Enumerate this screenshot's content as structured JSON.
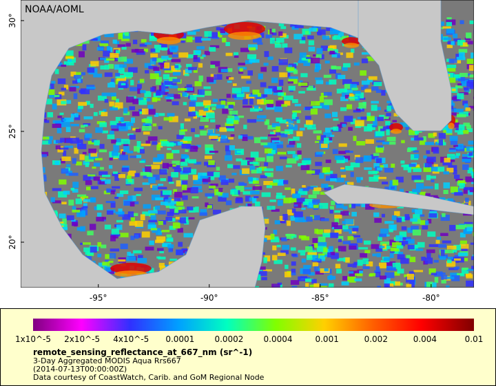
{
  "map": {
    "watermark": "NOAA/AOML",
    "lon_range": [
      -98.5,
      -78.07
    ],
    "lat_range": [
      17.95,
      30.93
    ],
    "lon_ticks": [
      {
        "value": -95,
        "label": "-95°"
      },
      {
        "value": -90,
        "label": "-90°"
      },
      {
        "value": -85,
        "label": "-85°"
      },
      {
        "value": -80,
        "label": "-80°"
      }
    ],
    "lat_ticks": [
      {
        "value": 30,
        "label": "30°"
      },
      {
        "value": 25,
        "label": "25°"
      },
      {
        "value": 20,
        "label": "20°"
      }
    ]
  },
  "colorbar": {
    "labels": [
      "1x10^-5",
      "2x10^-5",
      "4x10^-5",
      "0.0001",
      "0.0002",
      "0.0004",
      "0.001",
      "0.002",
      "0.004",
      "0.01"
    ]
  },
  "caption": {
    "variable": "remote_sensing_reflectance_at_667_nm (sr^-1)",
    "lines": [
      "3-Day Aggregated MODIS Aqua Rrs667",
      "(2014-07-13T00:00:00Z)",
      "Data courtesy of CoastWatch, Carib. and GoM Regional Node"
    ]
  }
}
